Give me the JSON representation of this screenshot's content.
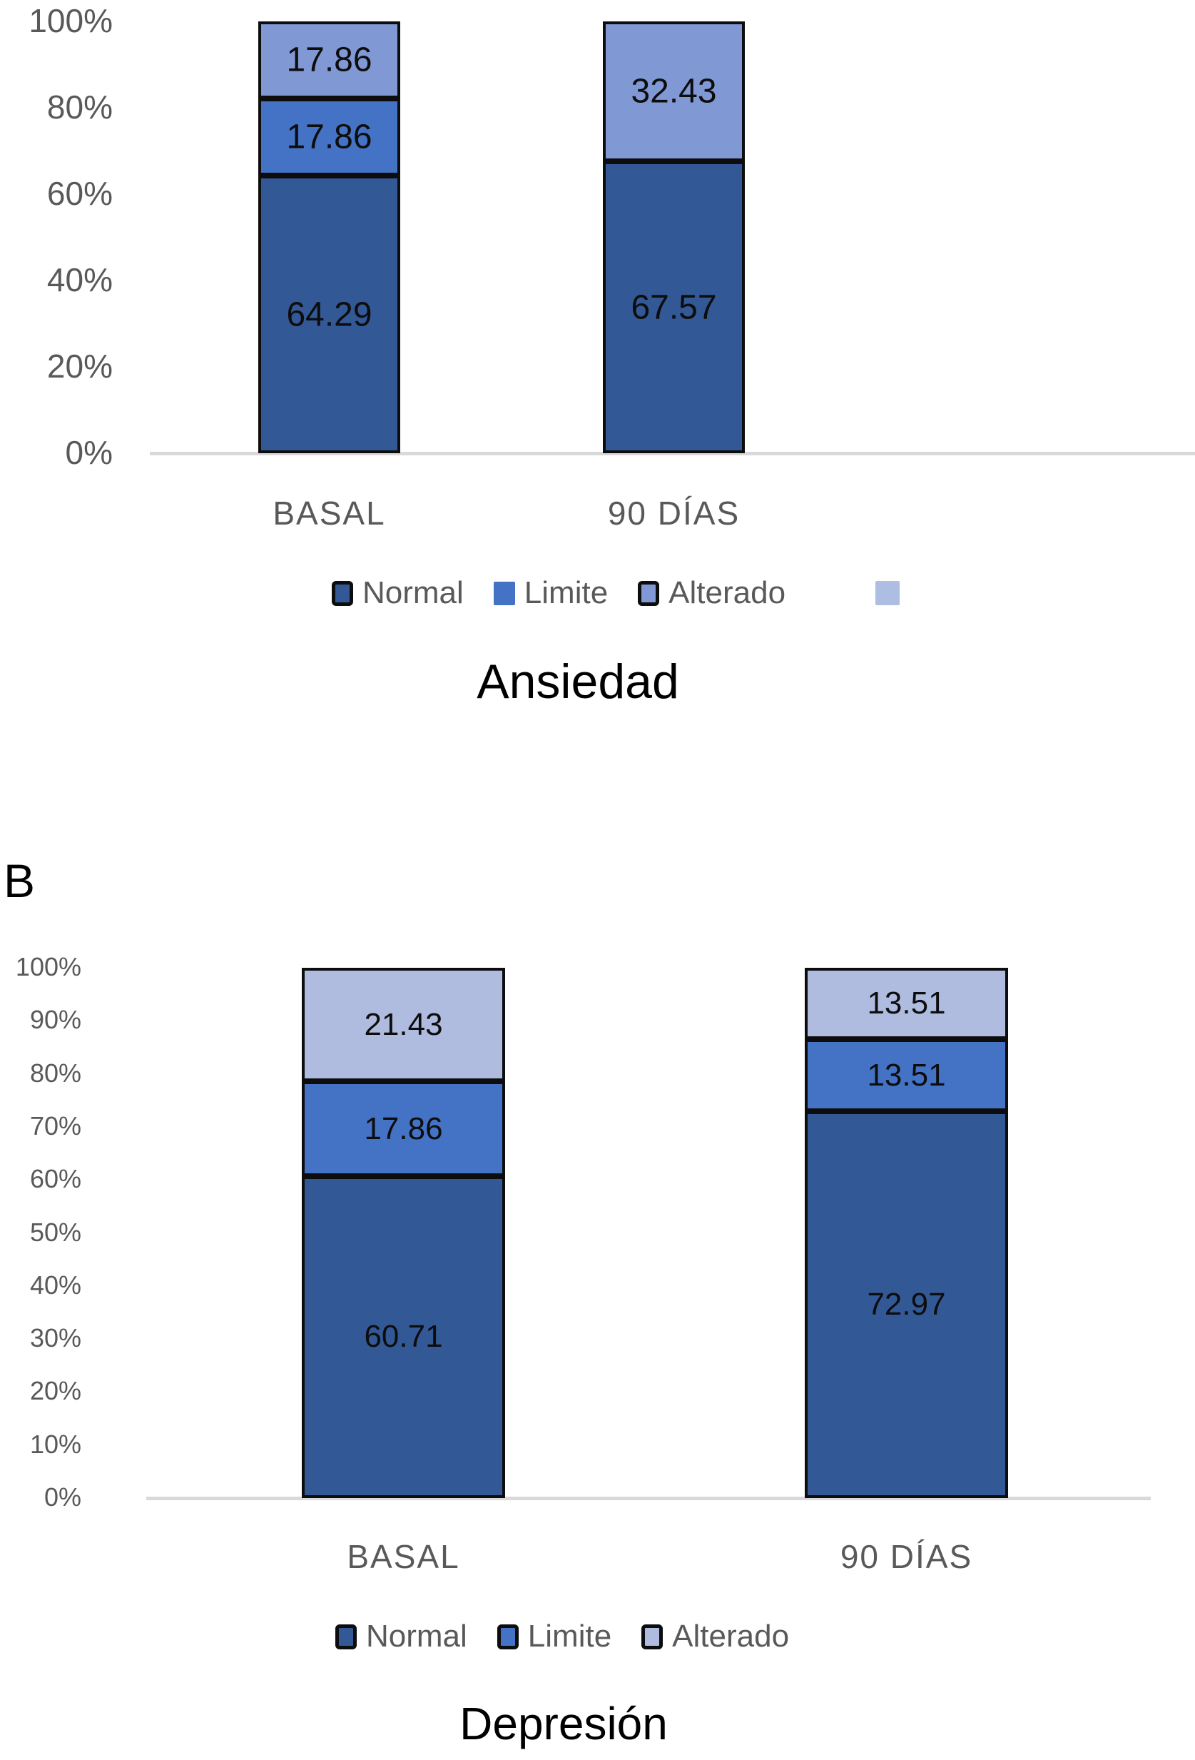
{
  "figure": {
    "panel_b_label": "B"
  },
  "colors": {
    "normal": "#335896",
    "limite": "#4472C4",
    "alterado_ansiedad": "#8098D4",
    "alterado_depresion": "#AFBCDF",
    "legend_extra_swatch": "#AEBDE2",
    "axis_line": "#D9D9D9",
    "axis_text": "#595959",
    "bar_border": "#0D0D0D"
  },
  "chart_data": [
    {
      "type": "bar",
      "stacked": true,
      "percent_stacked": true,
      "title": "Ansiedad",
      "categories": [
        "BASAL",
        "90 DÍAS"
      ],
      "series": [
        {
          "name": "Normal",
          "values": [
            64.29,
            67.57
          ]
        },
        {
          "name": "Limite",
          "values": [
            17.86,
            0
          ]
        },
        {
          "name": "Alterado",
          "values": [
            17.86,
            32.43
          ]
        }
      ],
      "y_tick_labels": [
        "100%",
        "80%",
        "60%",
        "40%",
        "20%",
        "0%"
      ],
      "ylim": [
        0,
        100
      ],
      "legend": [
        "Normal",
        "Limite",
        "Alterado",
        ""
      ],
      "legend_position": "bottom",
      "gridlines": false
    },
    {
      "type": "bar",
      "stacked": true,
      "percent_stacked": true,
      "title": "Depresión",
      "categories": [
        "BASAL",
        "90 DÍAS"
      ],
      "series": [
        {
          "name": "Normal",
          "values": [
            60.71,
            72.97
          ]
        },
        {
          "name": "Limite",
          "values": [
            17.86,
            13.51
          ]
        },
        {
          "name": "Alterado",
          "values": [
            21.43,
            13.51
          ]
        }
      ],
      "y_tick_labels": [
        "100%",
        "90%",
        "80%",
        "70%",
        "60%",
        "50%",
        "40%",
        "30%",
        "20%",
        "10%",
        "0%"
      ],
      "ylim": [
        0,
        100
      ],
      "legend": [
        "Normal",
        "Limite",
        "Alterado"
      ],
      "legend_position": "bottom",
      "gridlines": false
    }
  ]
}
